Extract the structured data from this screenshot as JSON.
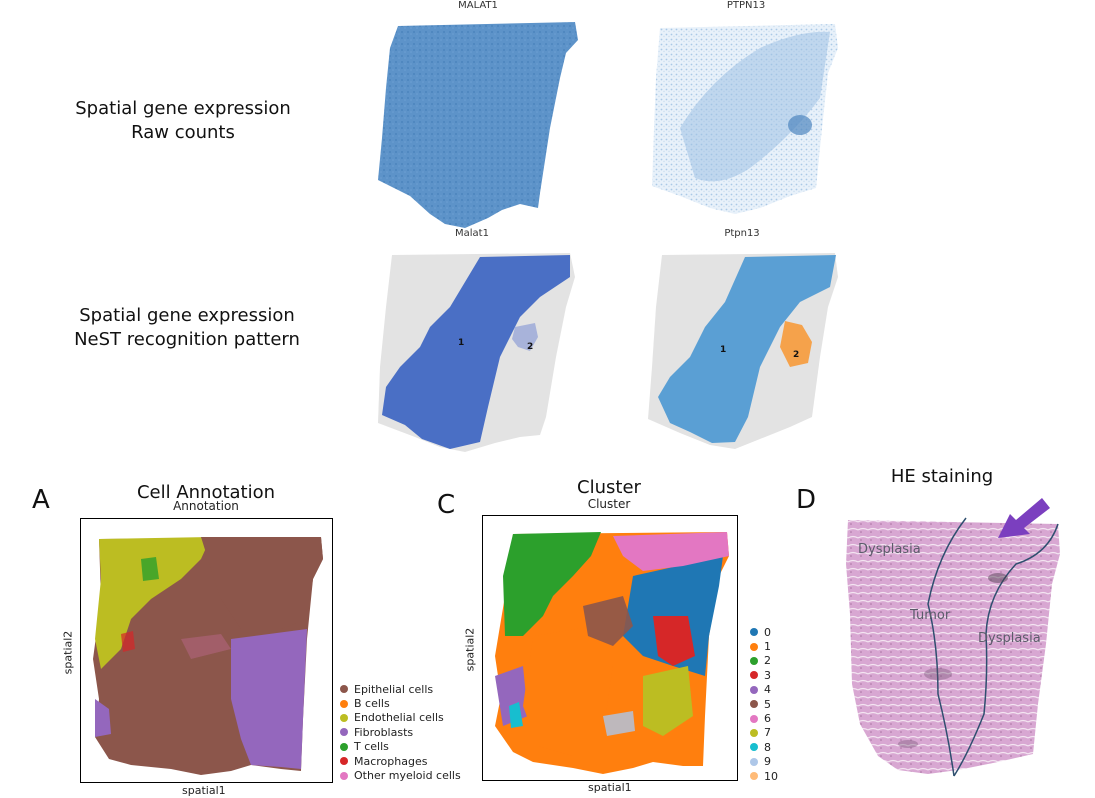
{
  "top_panels": {
    "row1_label_line1": "Spatial gene expression",
    "row1_label_line2": "Raw counts",
    "row2_label_line1": "Spatial gene expression",
    "row2_label_line2": "NeST recognition pattern",
    "raw_malat1_title": "MALAT1",
    "raw_ptpn13_title": "PTPN13",
    "nest_malat1_title": "Malat1",
    "nest_ptpn13_title": "Ptpn13",
    "nest_malat1_region1": "1",
    "nest_malat1_region2": "2",
    "nest_ptpn13_region1": "1",
    "nest_ptpn13_region2": "2"
  },
  "panel_a": {
    "letter": "A",
    "title": "Cell Annotation",
    "subtitle": "Annotation",
    "xlabel": "spatial1",
    "ylabel": "spatial2",
    "legend": [
      {
        "label": "Epithelial cells",
        "color": "#8c564b"
      },
      {
        "label": "B cells",
        "color": "#ff7f0e"
      },
      {
        "label": "Endothelial cells",
        "color": "#bcbd22"
      },
      {
        "label": "Fibroblasts",
        "color": "#9467bd"
      },
      {
        "label": "T cells",
        "color": "#2ca02c"
      },
      {
        "label": "Macrophages",
        "color": "#d62728"
      },
      {
        "label": "Other myeloid cells",
        "color": "#e377c2"
      }
    ]
  },
  "panel_c": {
    "letter": "C",
    "title": "Cluster",
    "subtitle": "Cluster",
    "xlabel": "spatial1",
    "ylabel": "spatial2",
    "legend": [
      {
        "label": "0",
        "color": "#1f77b4"
      },
      {
        "label": "1",
        "color": "#ff7f0e"
      },
      {
        "label": "2",
        "color": "#2ca02c"
      },
      {
        "label": "3",
        "color": "#d62728"
      },
      {
        "label": "4",
        "color": "#9467bd"
      },
      {
        "label": "5",
        "color": "#8c564b"
      },
      {
        "label": "6",
        "color": "#e377c2"
      },
      {
        "label": "7",
        "color": "#bcbd22"
      },
      {
        "label": "8",
        "color": "#17becf"
      },
      {
        "label": "9",
        "color": "#aec7e8"
      },
      {
        "label": "10",
        "color": "#ffbb78"
      }
    ]
  },
  "panel_d": {
    "letter": "D",
    "title": "HE staining",
    "label_dysplasia_left": "Dysplasia",
    "label_tumor": "Tumor",
    "label_dysplasia_right": "Dysplasia",
    "arrow_color": "#7b3fbf"
  }
}
